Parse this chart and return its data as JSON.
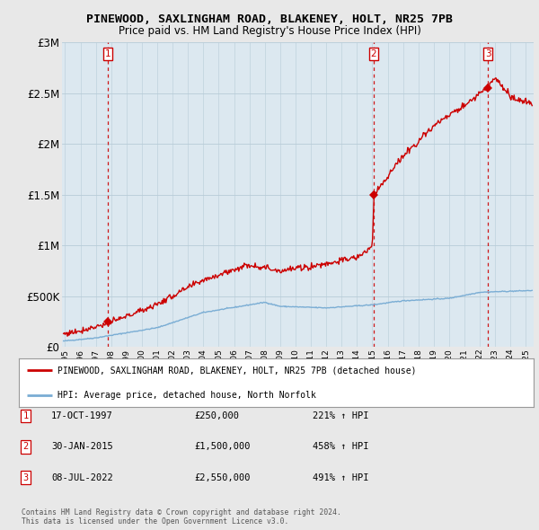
{
  "title": "PINEWOOD, SAXLINGHAM ROAD, BLAKENEY, HOLT, NR25 7PB",
  "subtitle": "Price paid vs. HM Land Registry's House Price Index (HPI)",
  "background_color": "#e8e8e8",
  "plot_background_color": "#dce8f0",
  "xlim": [
    1994.8,
    2025.5
  ],
  "ylim": [
    0,
    3000000
  ],
  "yticks": [
    0,
    500000,
    1000000,
    1500000,
    2000000,
    2500000,
    3000000
  ],
  "ytick_labels": [
    "£0",
    "£500K",
    "£1M",
    "£1.5M",
    "£2M",
    "£2.5M",
    "£3M"
  ],
  "xticks": [
    1995,
    1996,
    1997,
    1998,
    1999,
    2000,
    2001,
    2002,
    2003,
    2004,
    2005,
    2006,
    2007,
    2008,
    2009,
    2010,
    2011,
    2012,
    2013,
    2014,
    2015,
    2016,
    2017,
    2018,
    2019,
    2020,
    2021,
    2022,
    2023,
    2024,
    2025
  ],
  "sale_points": [
    {
      "year": 1997.79,
      "price": 250000,
      "label": "1"
    },
    {
      "year": 2015.08,
      "price": 1500000,
      "label": "2"
    },
    {
      "year": 2022.52,
      "price": 2550000,
      "label": "3"
    }
  ],
  "vlines": [
    {
      "x": 1997.79,
      "label": "1"
    },
    {
      "x": 2015.08,
      "label": "2"
    },
    {
      "x": 2022.52,
      "label": "3"
    }
  ],
  "hpi_color": "#7aadd4",
  "price_color": "#cc0000",
  "legend_entries": [
    "PINEWOOD, SAXLINGHAM ROAD, BLAKENEY, HOLT, NR25 7PB (detached house)",
    "HPI: Average price, detached house, North Norfolk"
  ],
  "table_rows": [
    {
      "num": "1",
      "date": "17-OCT-1997",
      "price": "£250,000",
      "change": "221% ↑ HPI"
    },
    {
      "num": "2",
      "date": "30-JAN-2015",
      "price": "£1,500,000",
      "change": "458% ↑ HPI"
    },
    {
      "num": "3",
      "date": "08-JUL-2022",
      "price": "£2,550,000",
      "change": "491% ↑ HPI"
    }
  ],
  "footer": "Contains HM Land Registry data © Crown copyright and database right 2024.\nThis data is licensed under the Open Government Licence v3.0."
}
